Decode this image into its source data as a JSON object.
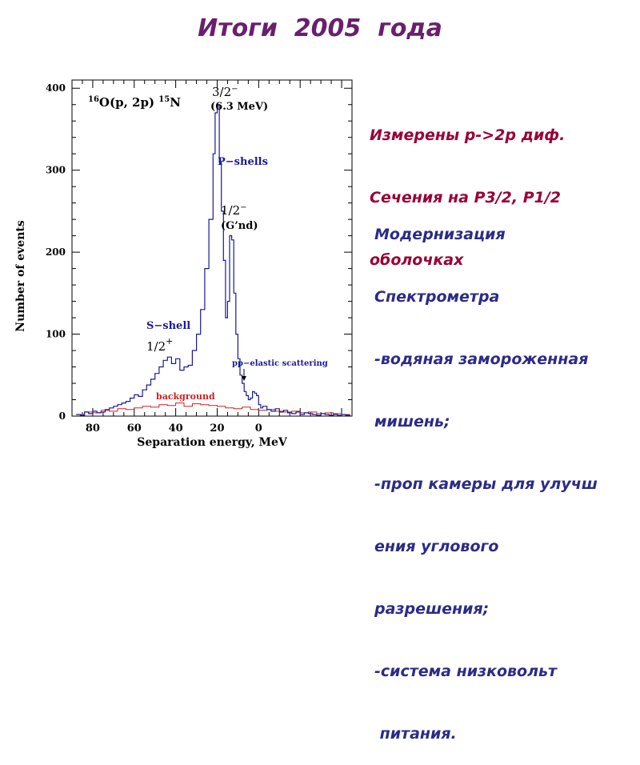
{
  "slide": {
    "title": "Итоги  2005  года",
    "measured_lines": [
      "Измерены p->2p диф.",
      "Сечения на P3/2, P1/2",
      "оболочках"
    ],
    "modernization_lines": [
      "Модернизация",
      "Спектрометра",
      "-водяная замороженная",
      "мишень;",
      "-проп камеры для улучш",
      "ения углового",
      "разрешения;",
      "-система низковольт",
      " питания."
    ]
  },
  "chart_data": {
    "type": "line",
    "xlabel": "Separation energy, MeV",
    "ylabel": "Number of events",
    "xlim": [
      90,
      -45
    ],
    "ylim": [
      0,
      410
    ],
    "x_reversed": true,
    "x_ticks": [
      "80",
      "60",
      "40",
      "20",
      "0"
    ],
    "x_tick_values": [
      80,
      60,
      40,
      20,
      0
    ],
    "y_ticks": [
      "0",
      "100",
      "200",
      "300",
      "400"
    ],
    "y_tick_values": [
      0,
      100,
      200,
      300,
      400
    ],
    "grid": false,
    "colors": {
      "signal": "#1a1a99",
      "background": "#cc2222",
      "axes": "#000000"
    },
    "reaction_label": {
      "pre_sup": "16",
      "main": "O(p, 2p) ",
      "post_sup": "15",
      "post_main": "N"
    },
    "annotations": {
      "peak_32": {
        "line1": "3/2",
        "sup1": "−",
        "line2": "(6.3 MeV)"
      },
      "p_shells": "P−shells",
      "peak_12": {
        "line1": "1/2",
        "sup1": "−",
        "line2": "(G’nd)"
      },
      "s_shell": "S−shell",
      "s_half": {
        "text": "1/2",
        "sup": "+"
      },
      "pp_elastic": "pp−elastic scattering",
      "background": "background"
    },
    "series": [
      {
        "name": "P-shells",
        "x": [
          88,
          86,
          84,
          82,
          80,
          78,
          76,
          74,
          72,
          70,
          68,
          66,
          64,
          62,
          60,
          58,
          56,
          54,
          52,
          50,
          48,
          46,
          44,
          42,
          40,
          38,
          36,
          34,
          32,
          30,
          28,
          26,
          24,
          22,
          21,
          20,
          19,
          18,
          17,
          16,
          15,
          14,
          13,
          12,
          11,
          10,
          9,
          8,
          7,
          6,
          5,
          4,
          3,
          2,
          1,
          0,
          -1,
          -2,
          -4,
          -6,
          -8,
          -10,
          -12,
          -14,
          -16,
          -18,
          -20,
          -22,
          -24,
          -26,
          -28,
          -30,
          -32,
          -34,
          -36,
          -38,
          -40,
          -42,
          -44
        ],
        "y": [
          2,
          1,
          5,
          3,
          6,
          4,
          5,
          8,
          10,
          12,
          14,
          16,
          18,
          22,
          26,
          24,
          32,
          38,
          45,
          52,
          60,
          68,
          72,
          64,
          70,
          56,
          60,
          62,
          80,
          100,
          130,
          180,
          240,
          320,
          370,
          380,
          310,
          250,
          190,
          120,
          140,
          220,
          215,
          150,
          100,
          70,
          50,
          40,
          30,
          25,
          20,
          22,
          30,
          28,
          25,
          14,
          10,
          12,
          8,
          6,
          9,
          5,
          7,
          4,
          3,
          5,
          2,
          4,
          3,
          2,
          1,
          3,
          2,
          1,
          2,
          1,
          2,
          1,
          0
        ]
      },
      {
        "name": "background",
        "x": [
          88,
          84,
          80,
          76,
          72,
          68,
          64,
          60,
          56,
          52,
          48,
          44,
          40,
          36,
          32,
          28,
          24,
          20,
          16,
          12,
          8,
          4,
          0,
          -4,
          -8,
          -12,
          -16,
          -20,
          -24,
          -28,
          -32,
          -36,
          -40,
          -44
        ],
        "y": [
          2,
          5,
          4,
          7,
          6,
          9,
          8,
          10,
          12,
          11,
          14,
          13,
          16,
          12,
          15,
          14,
          13,
          12,
          10,
          9,
          11,
          8,
          7,
          8,
          6,
          5,
          6,
          4,
          5,
          3,
          4,
          3,
          2,
          2
        ]
      }
    ]
  }
}
